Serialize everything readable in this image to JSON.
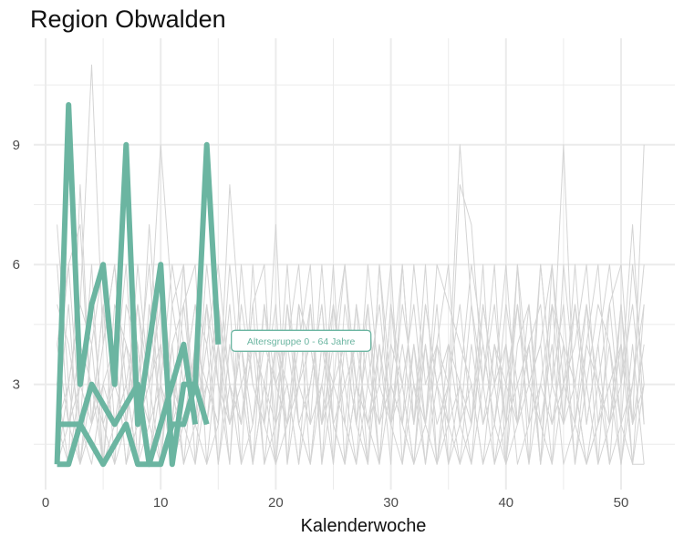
{
  "chart_data": {
    "type": "line",
    "title": "Region Obwalden",
    "xlabel": "Kalenderwoche",
    "ylabel": "",
    "xlim": [
      0,
      54
    ],
    "ylim": [
      0.5,
      11.6
    ],
    "xticks": [
      0,
      10,
      20,
      30,
      40,
      50
    ],
    "xticks_minor": [
      5,
      15,
      25,
      35,
      45
    ],
    "yticks": [
      3,
      6,
      9
    ],
    "yticks_minor": [
      1.5,
      4.5,
      7.5,
      10.5
    ],
    "grid": true,
    "legend": "none",
    "colors": {
      "highlight": "#6bb5a1",
      "background_lines": "#d4d4d4",
      "grid": "#ebebeb"
    },
    "annotation": {
      "text": "Altersgruppe 0 - 64 Jahre",
      "x": 22.2,
      "y": 4.0
    },
    "highlight_series": [
      {
        "x": [
          1,
          2,
          3,
          4,
          5,
          6,
          7,
          8,
          9,
          10,
          11,
          12,
          13,
          14,
          15
        ],
        "values": [
          1,
          10,
          3,
          5,
          6,
          3,
          9,
          2,
          4,
          6,
          1,
          3,
          3,
          9,
          4
        ]
      },
      {
        "x": [
          1,
          2,
          3,
          4,
          5,
          6,
          7,
          8,
          9,
          10,
          11,
          12,
          13,
          14
        ],
        "values": [
          2,
          2,
          2,
          3,
          2.5,
          2,
          2.5,
          3,
          1,
          2,
          3,
          4,
          2,
          null
        ]
      },
      {
        "x": [
          1,
          2,
          3,
          4,
          5,
          6,
          7,
          8,
          9,
          10,
          11,
          12,
          13,
          14
        ],
        "values": [
          1,
          1,
          2,
          1.5,
          1,
          1.5,
          2,
          1,
          1,
          1,
          2,
          2,
          3,
          2
        ]
      }
    ],
    "background_series": [
      {
        "x": [
          1,
          2,
          3,
          4,
          5,
          6,
          7,
          8,
          9,
          10,
          11,
          12,
          13,
          14,
          15,
          16,
          17,
          18,
          19,
          20,
          21,
          22,
          23,
          24,
          25,
          26,
          27,
          28,
          29,
          30,
          31,
          32,
          33,
          34,
          35,
          36,
          37,
          38,
          39,
          40,
          41,
          42,
          43,
          44,
          45,
          46,
          47,
          48,
          49,
          50,
          51,
          52
        ],
        "values": [
          7,
          3,
          5,
          11,
          4,
          6,
          2,
          5,
          3,
          4,
          2,
          6,
          1,
          3,
          2,
          8,
          4,
          2,
          5,
          3,
          4,
          2,
          1,
          4,
          3,
          2,
          5,
          1,
          6,
          2,
          3,
          1,
          4,
          2,
          3,
          9,
          5,
          2,
          3,
          4,
          2,
          5,
          1,
          3,
          9,
          2,
          4,
          3,
          1,
          5,
          2,
          9
        ]
      },
      {
        "x": [
          1,
          2,
          3,
          4,
          5,
          6,
          7,
          8,
          9,
          10,
          11,
          12,
          13,
          14,
          15,
          16,
          17,
          18,
          19,
          20,
          21,
          22,
          23,
          24,
          25,
          26,
          27,
          28,
          29,
          30,
          31,
          32,
          33,
          34,
          35,
          36,
          37,
          38,
          39,
          40,
          41,
          42,
          43,
          44,
          45,
          46,
          47,
          48,
          49,
          50,
          51,
          52
        ],
        "values": [
          4,
          6,
          7,
          2,
          5,
          3,
          6,
          1,
          4,
          9,
          5,
          3,
          5,
          2,
          4,
          1,
          6,
          3,
          2,
          7,
          1,
          5,
          4,
          2,
          3,
          6,
          2,
          4,
          1,
          5,
          2,
          6,
          3,
          4,
          2,
          8,
          7,
          3,
          5,
          2,
          6,
          3,
          4,
          6,
          3,
          5,
          2,
          4,
          6,
          3,
          7,
          2
        ]
      },
      {
        "x": [
          1,
          2,
          3,
          4,
          5,
          6,
          7,
          8,
          9,
          10,
          11,
          12,
          13,
          14,
          15,
          16,
          17,
          18,
          19,
          20,
          21,
          22,
          23,
          24,
          25,
          26,
          27,
          28,
          29,
          30,
          31,
          32,
          33,
          34,
          35,
          36,
          37,
          38,
          39,
          40,
          41,
          42,
          43,
          44,
          45,
          46,
          47,
          48,
          49,
          50,
          51,
          52
        ],
        "values": [
          2,
          3,
          1,
          4,
          6,
          2,
          3,
          5,
          2,
          1,
          4,
          5,
          2,
          6,
          3,
          2,
          4,
          1,
          3,
          2,
          5,
          3,
          2,
          6,
          2,
          1,
          3,
          5,
          2,
          4,
          3,
          5,
          2,
          1,
          4,
          3,
          2,
          5,
          3,
          6,
          2,
          4,
          5,
          2,
          3,
          4,
          6,
          2,
          3,
          4,
          1,
          5
        ]
      },
      {
        "x": [
          1,
          2,
          3,
          4,
          5,
          6,
          7,
          8,
          9,
          10,
          11,
          12,
          13,
          14,
          15,
          16,
          17,
          18,
          19,
          20,
          21,
          22,
          23,
          24,
          25,
          26,
          27,
          28,
          29,
          30,
          31,
          32,
          33,
          34,
          35,
          36,
          37,
          38,
          39,
          40,
          41,
          42,
          43,
          44,
          45,
          46,
          47,
          48,
          49,
          50,
          51,
          52
        ],
        "values": [
          3,
          1,
          8,
          2,
          3,
          4,
          1,
          3,
          6,
          2,
          3,
          1,
          4,
          2,
          5,
          3,
          1,
          6,
          2,
          4,
          3,
          1,
          5,
          2,
          4,
          6,
          3,
          2,
          4,
          1,
          6,
          2,
          5,
          3,
          4,
          2,
          3,
          1,
          4,
          3,
          5,
          2,
          3,
          5,
          4,
          1,
          3,
          5,
          4,
          2,
          6,
          3
        ]
      },
      {
        "x": [
          1,
          2,
          3,
          4,
          5,
          6,
          7,
          8,
          9,
          10,
          11,
          12,
          13,
          14,
          15,
          16,
          17,
          18,
          19,
          20,
          21,
          22,
          23,
          24,
          25,
          26,
          27,
          28,
          29,
          30,
          31,
          32,
          33,
          34,
          35,
          36,
          37,
          38,
          39,
          40,
          41,
          42,
          43,
          44,
          45,
          46,
          47,
          48,
          49,
          50,
          51,
          52
        ],
        "values": [
          5,
          4,
          2,
          6,
          1,
          5,
          4,
          2,
          7,
          3,
          6,
          4,
          3,
          5,
          1,
          4,
          2,
          5,
          6,
          1,
          2,
          4,
          6,
          1,
          5,
          3,
          4,
          2,
          3,
          6,
          1,
          4,
          2,
          5,
          1,
          3,
          6,
          4,
          2,
          5,
          3,
          1,
          6,
          3,
          2,
          5,
          3,
          1,
          5,
          6,
          2,
          4
        ]
      },
      {
        "x": [
          1,
          2,
          3,
          4,
          5,
          6,
          7,
          8,
          9,
          10,
          11,
          12,
          13,
          14,
          15,
          16,
          17,
          18,
          19,
          20,
          21,
          22,
          23,
          24,
          25,
          26,
          27,
          28,
          29,
          30,
          31,
          32,
          33,
          34,
          35,
          36,
          37,
          38,
          39,
          40,
          41,
          42,
          43,
          44,
          45,
          46,
          47,
          48,
          49,
          50,
          51,
          52
        ],
        "values": [
          1,
          2,
          4,
          3,
          2,
          1,
          5,
          4,
          1,
          3,
          2,
          5,
          6,
          1,
          4,
          2,
          3,
          4,
          1,
          2,
          6,
          2,
          3,
          5,
          1,
          4,
          2,
          6,
          3,
          2,
          5,
          3,
          1,
          4,
          6,
          2,
          1,
          3,
          6,
          1,
          4,
          5,
          2,
          1,
          6,
          3,
          1,
          2,
          3,
          1,
          4,
          1
        ]
      },
      {
        "x": [
          1,
          2,
          3,
          4,
          5,
          6,
          7,
          8,
          9,
          10,
          11,
          12,
          13,
          14,
          15,
          16,
          17,
          18,
          19,
          20,
          21,
          22,
          23,
          24,
          25,
          26,
          27,
          28,
          29,
          30,
          31,
          32,
          33,
          34,
          35,
          36,
          37,
          38,
          39,
          40,
          41,
          42,
          43,
          44,
          45,
          46,
          47,
          48,
          49,
          50,
          51,
          52
        ],
        "values": [
          6,
          2,
          3,
          5,
          2,
          3,
          2,
          6,
          3,
          5,
          1,
          2,
          4,
          3,
          2,
          5,
          1,
          2,
          4,
          3,
          2,
          5,
          1,
          3,
          5,
          2,
          1,
          3,
          5,
          2,
          4,
          2,
          6,
          1,
          3,
          5,
          2,
          6,
          1,
          3,
          2,
          4,
          1,
          5,
          2,
          6,
          2,
          4,
          1,
          2,
          3,
          6
        ]
      },
      {
        "x": [
          1,
          2,
          3,
          4,
          5,
          6,
          7,
          8,
          9,
          10,
          11,
          12,
          13,
          14,
          15,
          16,
          17,
          18,
          19,
          20,
          21,
          22,
          23,
          24,
          25,
          26,
          27,
          28,
          29,
          30,
          31,
          32,
          33,
          34,
          35,
          36,
          37,
          38,
          39,
          40,
          41,
          42,
          43,
          44,
          45,
          46,
          47,
          48,
          49,
          50,
          51,
          52
        ],
        "values": [
          2,
          5,
          1,
          2,
          4,
          6,
          3,
          1,
          5,
          2,
          4,
          1,
          2,
          4,
          6,
          3,
          2,
          4,
          3,
          5,
          1,
          3,
          4,
          2,
          6,
          1,
          5,
          3,
          2,
          3,
          2,
          1,
          5,
          3,
          2,
          1,
          4,
          2,
          4,
          2,
          5,
          3,
          2,
          4,
          1,
          2,
          5,
          3,
          2,
          5,
          1,
          3
        ]
      },
      {
        "x": [
          1,
          2,
          3,
          4,
          5,
          6,
          7,
          8,
          9,
          10,
          11,
          12,
          13,
          14,
          15,
          16,
          17,
          18,
          19,
          20,
          21,
          22,
          23,
          24,
          25,
          26,
          27,
          28,
          29,
          30,
          31,
          32,
          33,
          34,
          35,
          36,
          37,
          38,
          39,
          40,
          41,
          42,
          43,
          44,
          45,
          46,
          47,
          48,
          49,
          50,
          51,
          52
        ],
        "values": [
          3,
          6,
          2,
          1,
          3,
          2,
          4,
          3,
          2,
          6,
          3,
          2,
          1,
          5,
          3,
          1,
          5,
          3,
          2,
          1,
          4,
          6,
          2,
          3,
          1,
          5,
          3,
          1,
          4,
          2,
          1,
          3,
          2,
          6,
          5,
          4,
          3,
          1,
          2,
          4,
          1,
          2,
          6,
          3,
          5,
          1,
          4,
          6,
          2,
          3,
          5,
          2
        ]
      },
      {
        "x": [
          1,
          2,
          3,
          4,
          5,
          6,
          7,
          8,
          9,
          10,
          11,
          12,
          13,
          14,
          15,
          16,
          17,
          18,
          19,
          20,
          21,
          22,
          23,
          24,
          25,
          26,
          27,
          28,
          29,
          30,
          31,
          32,
          33,
          34,
          35,
          36,
          37,
          38,
          39,
          40,
          41,
          42,
          43,
          44,
          45,
          46,
          47,
          48,
          49,
          50,
          51,
          52
        ],
        "values": [
          1,
          3,
          5,
          4,
          1,
          4,
          1,
          2,
          3,
          1,
          5,
          6,
          2,
          1,
          2,
          6,
          3,
          1,
          5,
          2,
          3,
          1,
          3,
          5,
          2,
          3,
          1,
          5,
          1,
          3,
          6,
          2,
          4,
          1,
          2,
          3,
          1,
          5,
          3,
          1,
          6,
          1,
          3,
          2,
          4,
          3,
          1,
          2,
          4,
          1,
          3,
          5
        ]
      },
      {
        "x": [
          1,
          2,
          3,
          4,
          5,
          6,
          7,
          8,
          9,
          10,
          11,
          12,
          13,
          14,
          15,
          16,
          17,
          18,
          19,
          20,
          21,
          22,
          23,
          24,
          25,
          26,
          27,
          28,
          29,
          30,
          31,
          32,
          33,
          34,
          35,
          36,
          37,
          38,
          39,
          40,
          41,
          42,
          43,
          44,
          45,
          46,
          47,
          48,
          49,
          50,
          51,
          52
        ],
        "values": [
          2,
          1,
          3,
          2,
          5,
          1,
          2,
          4,
          1,
          4,
          2,
          3,
          5,
          4,
          1,
          3,
          2,
          5,
          1,
          4,
          2,
          3,
          5,
          1,
          3,
          4,
          2,
          1,
          6,
          3,
          2,
          4,
          1,
          3,
          1,
          2,
          5,
          3,
          1,
          2,
          3,
          4,
          1,
          6,
          2,
          3,
          5,
          1,
          2,
          4,
          2,
          3
        ]
      },
      {
        "x": [
          1,
          2,
          3,
          4,
          5,
          6,
          7,
          8,
          9,
          10,
          11,
          12,
          13,
          14,
          15,
          16,
          17,
          18,
          19,
          20,
          21,
          22,
          23,
          24,
          25,
          26,
          27,
          28,
          29,
          30,
          31,
          32,
          33,
          34,
          35,
          36,
          37,
          38,
          39,
          40,
          41,
          42,
          43,
          44,
          45,
          46,
          47,
          48,
          49,
          50,
          51,
          52
        ],
        "values": [
          4,
          2,
          1,
          3,
          1,
          2,
          3,
          1,
          2,
          3,
          1,
          4,
          2,
          3,
          5,
          2,
          4,
          1,
          3,
          1,
          5,
          2,
          1,
          4,
          2,
          1,
          3,
          2,
          1,
          5,
          3,
          1,
          2,
          4,
          3,
          1,
          2,
          4,
          2,
          1,
          2,
          3,
          4,
          1,
          3,
          2,
          1,
          3,
          5,
          2,
          1,
          1
        ]
      }
    ]
  }
}
